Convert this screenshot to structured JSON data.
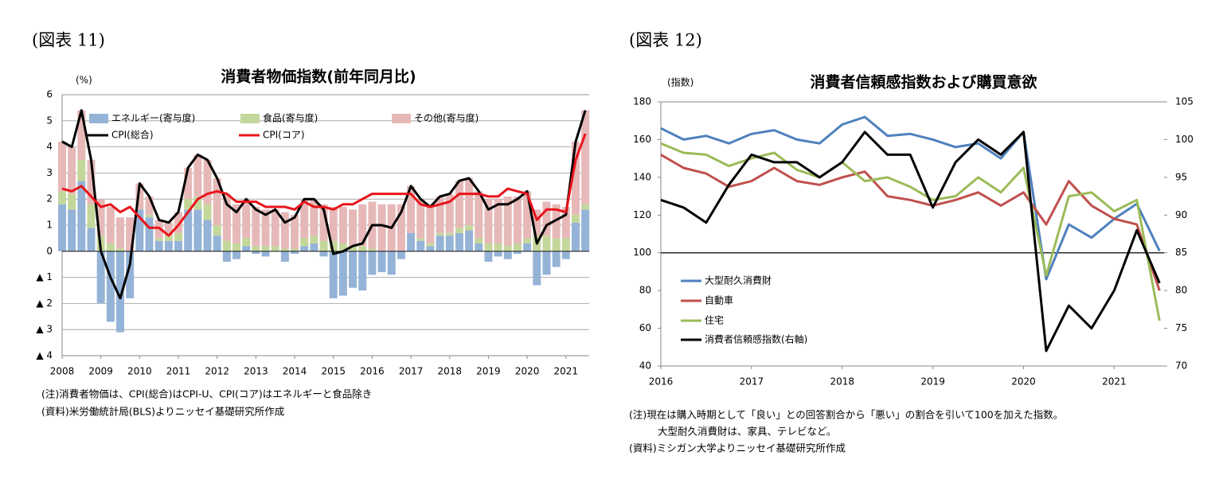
{
  "panels": [
    {
      "label": "(図表 11)",
      "notes": [
        "(注)消費者物価は、CPI(総合)はCPI-U、CPI(コア)はエネルギーと食品除き",
        "(資料)米労働統計局(BLS)よりニッセイ基礎研究所作成"
      ]
    },
    {
      "label": "(図表 12)",
      "notes": [
        "(注)現在は購入時期として「良い」との回答割合から「悪い」の割合を引いて100を加えた指数。",
        "大型耐久消費財は、家具、テレビなど。",
        "(資料)ミシガン大学よりニッセイ基礎研究所作成"
      ]
    }
  ],
  "chart_data": [
    {
      "type": "bar",
      "title": "消費者物価指数(前年同月比)",
      "y_unit": "(%)",
      "grid": true,
      "xlim": [
        2008,
        2021.6
      ],
      "xticks": [
        2008,
        2009,
        2010,
        2011,
        2012,
        2013,
        2014,
        2015,
        2016,
        2017,
        2018,
        2019,
        2020,
        2021
      ],
      "ylim": [
        -4,
        6
      ],
      "yticks": [
        {
          "value": -4,
          "label": "▲ 4"
        },
        {
          "value": -3,
          "label": "▲ 3"
        },
        {
          "value": -2,
          "label": "▲ 2"
        },
        {
          "value": -1,
          "label": "▲ 1"
        },
        0,
        1,
        2,
        3,
        4,
        5,
        6
      ],
      "x": [
        2008,
        2008.25,
        2008.5,
        2008.75,
        2009,
        2009.25,
        2009.5,
        2009.75,
        2010,
        2010.25,
        2010.5,
        2010.75,
        2011,
        2011.25,
        2011.5,
        2011.75,
        2012,
        2012.25,
        2012.5,
        2012.75,
        2013,
        2013.25,
        2013.5,
        2013.75,
        2014,
        2014.25,
        2014.5,
        2014.75,
        2015,
        2015.25,
        2015.5,
        2015.75,
        2016,
        2016.25,
        2016.5,
        2016.75,
        2017,
        2017.25,
        2017.5,
        2017.75,
        2018,
        2018.25,
        2018.5,
        2018.75,
        2019,
        2019.25,
        2019.5,
        2019.75,
        2020,
        2020.25,
        2020.5,
        2020.75,
        2021,
        2021.25,
        2021.5
      ],
      "series": [
        {
          "name": "エネルギー(寄与度)",
          "kind": "bar",
          "color": "#95b3d7",
          "values": [
            1.8,
            1.6,
            2.7,
            0.9,
            -2.0,
            -2.7,
            -3.1,
            -1.8,
            1.6,
            1.3,
            0.4,
            0.4,
            0.4,
            1.6,
            1.6,
            1.2,
            0.6,
            -0.4,
            -0.3,
            0.2,
            -0.1,
            -0.2,
            0.0,
            -0.4,
            -0.1,
            0.2,
            0.3,
            -0.2,
            -1.8,
            -1.7,
            -1.4,
            -1.5,
            -0.9,
            -0.8,
            -0.9,
            -0.3,
            0.7,
            0.4,
            0.2,
            0.6,
            0.6,
            0.7,
            0.8,
            0.3,
            -0.4,
            -0.2,
            -0.3,
            -0.1,
            0.3,
            -1.3,
            -0.9,
            -0.6,
            -0.3,
            1.1,
            1.6
          ]
        },
        {
          "name": "食品(寄与度)",
          "kind": "bar",
          "color": "#c4d79b",
          "values": [
            0.5,
            0.6,
            0.8,
            0.9,
            0.6,
            0.3,
            0.1,
            0,
            0,
            0.1,
            0.1,
            0.2,
            0.3,
            0.4,
            0.5,
            0.6,
            0.4,
            0.4,
            0.3,
            0.3,
            0.2,
            0.2,
            0.2,
            0.1,
            0.1,
            0.3,
            0.3,
            0.4,
            0.4,
            0.3,
            0.2,
            0.2,
            0.1,
            0,
            0,
            0,
            0,
            0.1,
            0.1,
            0.1,
            0.1,
            0.2,
            0.2,
            0.2,
            0.3,
            0.3,
            0.2,
            0.3,
            0.2,
            0.6,
            0.6,
            0.5,
            0.5,
            0.3,
            0.2
          ]
        },
        {
          "name": "その他(寄与度)",
          "kind": "bar",
          "color": "#e6b9b8",
          "values": [
            1.9,
            1.8,
            1.9,
            1.7,
            1.4,
            1.4,
            1.2,
            1.3,
            1.0,
            0.7,
            0.7,
            0.5,
            0.8,
            1.2,
            1.6,
            1.7,
            1.8,
            1.8,
            1.5,
            1.5,
            1.5,
            1.4,
            1.4,
            1.4,
            1.3,
            1.5,
            1.4,
            1.4,
            1.3,
            1.4,
            1.4,
            1.6,
            1.8,
            1.8,
            1.8,
            1.8,
            1.8,
            1.5,
            1.4,
            1.4,
            1.5,
            1.8,
            1.8,
            1.8,
            1.7,
            1.7,
            1.9,
            1.8,
            1.8,
            1.0,
            1.3,
            1.3,
            1.2,
            2.8,
            3.6
          ]
        },
        {
          "name": "CPI(総合)",
          "kind": "line",
          "color": "#000000",
          "values": [
            4.2,
            4.0,
            5.4,
            3.5,
            0.0,
            -1.0,
            -1.8,
            -0.5,
            2.6,
            2.1,
            1.2,
            1.1,
            1.5,
            3.2,
            3.7,
            3.5,
            2.8,
            1.8,
            1.5,
            2.0,
            1.6,
            1.4,
            1.6,
            1.1,
            1.3,
            2.0,
            2.0,
            1.6,
            -0.1,
            0.0,
            0.2,
            0.3,
            1.0,
            1.0,
            0.9,
            1.5,
            2.5,
            2.0,
            1.7,
            2.1,
            2.2,
            2.7,
            2.8,
            2.3,
            1.6,
            1.8,
            1.8,
            2.0,
            2.3,
            0.3,
            1.0,
            1.2,
            1.4,
            4.2,
            5.4
          ]
        },
        {
          "name": "CPI(コア)",
          "kind": "line",
          "color": "#e8141b",
          "values": [
            2.4,
            2.3,
            2.5,
            2.1,
            1.7,
            1.8,
            1.5,
            1.7,
            1.3,
            0.9,
            0.9,
            0.6,
            1.0,
            1.5,
            2.0,
            2.2,
            2.3,
            2.2,
            1.9,
            1.9,
            1.9,
            1.7,
            1.7,
            1.7,
            1.6,
            1.9,
            1.7,
            1.7,
            1.6,
            1.8,
            1.8,
            2.0,
            2.2,
            2.2,
            2.2,
            2.2,
            2.2,
            1.8,
            1.7,
            1.8,
            1.9,
            2.2,
            2.2,
            2.2,
            2.1,
            2.1,
            2.4,
            2.3,
            2.2,
            1.2,
            1.6,
            1.6,
            1.5,
            3.5,
            4.5
          ]
        }
      ]
    },
    {
      "type": "line",
      "title": "消費者信頼感指数および購買意欲",
      "y_unit": "(指数)",
      "grid": false,
      "reference_line": 100,
      "xlim": [
        2016,
        2021.55
      ],
      "xticks": [
        2016,
        2017,
        2018,
        2019,
        2020,
        2021
      ],
      "ylim": [
        40,
        180
      ],
      "yticks": [
        40,
        60,
        80,
        100,
        120,
        140,
        160,
        180
      ],
      "y2lim": [
        70,
        105
      ],
      "y2ticks": [
        70,
        75,
        80,
        85,
        90,
        95,
        100,
        105
      ],
      "x": [
        2016,
        2016.25,
        2016.5,
        2016.75,
        2017,
        2017.25,
        2017.5,
        2017.75,
        2018,
        2018.25,
        2018.5,
        2018.75,
        2019,
        2019.25,
        2019.5,
        2019.75,
        2020,
        2020.25,
        2020.5,
        2020.75,
        2021,
        2021.25,
        2021.5
      ],
      "series": [
        {
          "name": "大型耐久消費財",
          "color": "#4f81bd",
          "values": [
            166,
            160,
            162,
            158,
            163,
            165,
            160,
            158,
            168,
            172,
            162,
            163,
            160,
            156,
            158,
            150,
            164,
            86,
            115,
            108,
            118,
            126,
            101
          ]
        },
        {
          "name": "自動車",
          "color": "#c0504d",
          "values": [
            152,
            145,
            142,
            135,
            138,
            145,
            138,
            136,
            140,
            143,
            130,
            128,
            125,
            128,
            132,
            125,
            132,
            115,
            138,
            125,
            118,
            115,
            80
          ]
        },
        {
          "name": "住宅",
          "color": "#9bbb59",
          "values": [
            158,
            153,
            152,
            146,
            150,
            153,
            144,
            140,
            148,
            138,
            140,
            135,
            128,
            130,
            140,
            132,
            145,
            88,
            130,
            132,
            122,
            128,
            64
          ]
        },
        {
          "name": "消費者信頼感指数(右軸)",
          "color": "#000000",
          "axis": "y2",
          "values": [
            92,
            91,
            89,
            94,
            98,
            97,
            97,
            95,
            97,
            101,
            98,
            98,
            91,
            97,
            100,
            98,
            101,
            72,
            78,
            75,
            80,
            88,
            81
          ]
        }
      ]
    }
  ]
}
